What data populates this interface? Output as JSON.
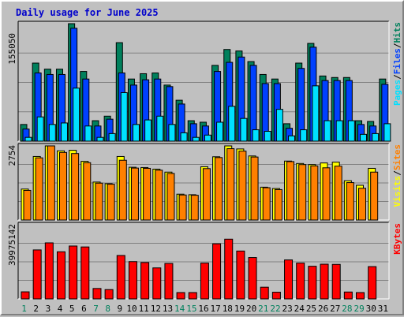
{
  "colors": {
    "background": "#c0c0c0",
    "panel": "#c0c0c0",
    "gridline": "#808080",
    "hits": "#00805c",
    "files": "#0040ff",
    "pages": "#00e0ff",
    "visits": "#ffff00",
    "sites": "#ff8000",
    "kbytes": "#ff0000",
    "title_text": "#0000cc",
    "weekend_day": "#00805c",
    "weekday": "#000000"
  },
  "chart_data": [
    {
      "type": "bar",
      "title": "Daily usage for June 2025",
      "ymax_label": "155050",
      "ylim": [
        0,
        155050
      ],
      "categories": [
        "1",
        "2",
        "3",
        "4",
        "5",
        "6",
        "7",
        "8",
        "9",
        "10",
        "11",
        "12",
        "13",
        "14",
        "15",
        "16",
        "17",
        "18",
        "19",
        "20",
        "21",
        "22",
        "23",
        "24",
        "25",
        "26",
        "27",
        "28",
        "29",
        "30",
        "31"
      ],
      "weekend_days": [
        "1",
        "7",
        "8",
        "14",
        "15",
        "21",
        "22",
        "28",
        "29"
      ],
      "legend": [
        "Hits",
        "/",
        "Files",
        "/",
        "Pages"
      ],
      "series": [
        {
          "name": "Hits",
          "values": [
            22000,
            103000,
            95000,
            95000,
            155050,
            92000,
            27000,
            33000,
            130000,
            82000,
            89000,
            90000,
            74000,
            54000,
            27000,
            25000,
            100000,
            121000,
            119000,
            105000,
            88000,
            82000,
            23000,
            103000,
            129000,
            86000,
            84000,
            84000,
            27000,
            26000,
            82000
          ]
        },
        {
          "name": "Files",
          "values": [
            16000,
            90000,
            88000,
            88000,
            149000,
            82000,
            20000,
            29000,
            90000,
            74000,
            81000,
            82000,
            72000,
            49000,
            23000,
            20000,
            92000,
            104000,
            111000,
            100000,
            76000,
            76000,
            17000,
            96000,
            124000,
            80000,
            80000,
            80000,
            22000,
            20000,
            75000
          ]
        },
        {
          "name": "Pages",
          "values": [
            5000,
            32000,
            22000,
            24000,
            70000,
            20000,
            5000,
            10000,
            64000,
            22000,
            28000,
            33000,
            22000,
            11000,
            5000,
            8000,
            25000,
            46000,
            30000,
            15000,
            13000,
            42000,
            7000,
            15000,
            73000,
            27000,
            27000,
            27000,
            9000,
            10000,
            23000
          ]
        }
      ]
    },
    {
      "type": "bar",
      "ymax_label": "2754",
      "ylim": [
        0,
        2754
      ],
      "categories": [
        "1",
        "2",
        "3",
        "4",
        "5",
        "6",
        "7",
        "8",
        "9",
        "10",
        "11",
        "12",
        "13",
        "14",
        "15",
        "16",
        "17",
        "18",
        "19",
        "20",
        "21",
        "22",
        "23",
        "24",
        "25",
        "26",
        "27",
        "28",
        "29",
        "30",
        "31"
      ],
      "legend": [
        "Sites",
        "/",
        "Visits"
      ],
      "series": [
        {
          "name": "Visits",
          "values": [
            1150,
            2360,
            2754,
            2570,
            2590,
            2180,
            1410,
            1350,
            2360,
            1960,
            1950,
            1890,
            1780,
            960,
            940,
            1980,
            2350,
            2754,
            2640,
            2380,
            1220,
            1170,
            2190,
            2100,
            2060,
            2120,
            2150,
            1460,
            1290,
            1920,
            0
          ]
        },
        {
          "name": "Sites",
          "values": [
            1100,
            2310,
            2754,
            2510,
            2470,
            2130,
            1370,
            1330,
            2220,
            1930,
            1920,
            1850,
            1730,
            930,
            920,
            1910,
            2320,
            2650,
            2560,
            2340,
            1200,
            1130,
            2170,
            2060,
            2010,
            1940,
            2000,
            1390,
            1180,
            1780,
            0
          ]
        }
      ]
    },
    {
      "type": "bar",
      "ymax_label": "39975142",
      "ylim": [
        0,
        39975142
      ],
      "categories": [
        "1",
        "2",
        "3",
        "4",
        "5",
        "6",
        "7",
        "8",
        "9",
        "10",
        "11",
        "12",
        "13",
        "14",
        "15",
        "16",
        "17",
        "18",
        "19",
        "20",
        "21",
        "22",
        "23",
        "24",
        "25",
        "26",
        "27",
        "28",
        "29",
        "30",
        "31"
      ],
      "legend": [
        "KBytes"
      ],
      "series": [
        {
          "name": "KBytes",
          "values": [
            3800000,
            26400000,
            30200000,
            25400000,
            28500000,
            28000000,
            5600000,
            5000000,
            23400000,
            20100000,
            19600000,
            16700000,
            19100000,
            3400000,
            3400000,
            19300000,
            29700000,
            32200000,
            25800000,
            22300000,
            6300000,
            3600000,
            21000000,
            19300000,
            17600000,
            18700000,
            18600000,
            3700000,
            3400000,
            17400000,
            0
          ]
        }
      ]
    }
  ]
}
